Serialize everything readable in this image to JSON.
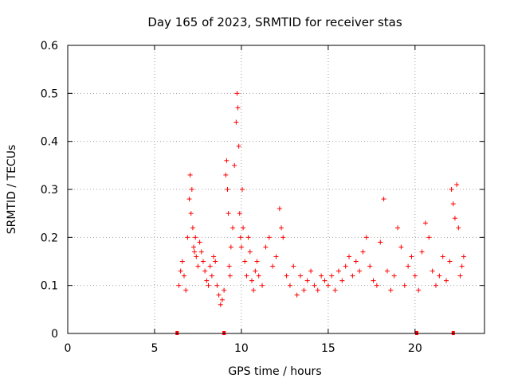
{
  "chart_data": {
    "type": "scatter",
    "title": "Day 165 of 2023, SRMTID for receiver stas",
    "xlabel": "GPS time / hours",
    "ylabel": "SRMTID / TECUs",
    "xlim": [
      0,
      24
    ],
    "ylim": [
      0,
      0.6
    ],
    "xticks": [
      0,
      5,
      10,
      15,
      20
    ],
    "xtick_labels": [
      "0",
      "5",
      "10",
      "15",
      "20"
    ],
    "yticks": [
      0,
      0.1,
      0.2,
      0.3,
      0.4,
      0.5,
      0.6
    ],
    "ytick_labels": [
      "0",
      "0.1",
      "0.2",
      "0.3",
      "0.4",
      "0.5",
      "0.6"
    ],
    "grid": true,
    "marker": "plus",
    "color": "#ff0000",
    "zero_markers_x": [
      6.3,
      9.0,
      20.1,
      22.2
    ],
    "series": [
      {
        "name": "SRMTID",
        "x": [
          6.4,
          6.5,
          6.6,
          6.7,
          6.8,
          6.9,
          7.0,
          7.05,
          7.1,
          7.15,
          7.2,
          7.25,
          7.3,
          7.35,
          7.4,
          7.5,
          7.6,
          7.7,
          7.8,
          7.9,
          8.0,
          8.1,
          8.2,
          8.3,
          8.4,
          8.5,
          8.6,
          8.7,
          8.8,
          8.9,
          9.0,
          9.1,
          9.15,
          9.2,
          9.25,
          9.3,
          9.35,
          9.4,
          9.5,
          9.6,
          9.7,
          9.75,
          9.8,
          9.85,
          9.9,
          9.95,
          10.0,
          10.05,
          10.1,
          10.2,
          10.3,
          10.4,
          10.5,
          10.6,
          10.7,
          10.8,
          10.9,
          11.0,
          11.2,
          11.4,
          11.6,
          11.8,
          12.0,
          12.2,
          12.3,
          12.4,
          12.6,
          12.8,
          13.0,
          13.2,
          13.4,
          13.6,
          13.8,
          14.0,
          14.2,
          14.4,
          14.6,
          14.8,
          15.0,
          15.2,
          15.4,
          15.6,
          15.8,
          16.0,
          16.2,
          16.4,
          16.6,
          16.8,
          17.0,
          17.2,
          17.4,
          17.6,
          17.8,
          18.0,
          18.2,
          18.4,
          18.6,
          18.8,
          19.0,
          19.2,
          19.4,
          19.6,
          19.8,
          20.0,
          20.2,
          20.4,
          20.6,
          20.8,
          21.0,
          21.2,
          21.4,
          21.6,
          21.8,
          22.0,
          22.1,
          22.2,
          22.3,
          22.4,
          22.5,
          22.6,
          22.7,
          22.8
        ],
        "y": [
          0.1,
          0.13,
          0.15,
          0.12,
          0.09,
          0.2,
          0.28,
          0.33,
          0.25,
          0.3,
          0.22,
          0.18,
          0.17,
          0.2,
          0.16,
          0.14,
          0.19,
          0.17,
          0.15,
          0.13,
          0.11,
          0.1,
          0.14,
          0.12,
          0.16,
          0.15,
          0.1,
          0.08,
          0.06,
          0.07,
          0.09,
          0.33,
          0.36,
          0.3,
          0.25,
          0.14,
          0.12,
          0.18,
          0.22,
          0.35,
          0.44,
          0.5,
          0.47,
          0.39,
          0.25,
          0.2,
          0.18,
          0.3,
          0.22,
          0.15,
          0.12,
          0.2,
          0.17,
          0.11,
          0.09,
          0.13,
          0.15,
          0.12,
          0.1,
          0.18,
          0.2,
          0.14,
          0.16,
          0.26,
          0.22,
          0.2,
          0.12,
          0.1,
          0.14,
          0.08,
          0.12,
          0.09,
          0.11,
          0.13,
          0.1,
          0.09,
          0.12,
          0.11,
          0.1,
          0.12,
          0.09,
          0.13,
          0.11,
          0.14,
          0.16,
          0.12,
          0.15,
          0.13,
          0.17,
          0.2,
          0.14,
          0.11,
          0.1,
          0.19,
          0.28,
          0.13,
          0.09,
          0.12,
          0.22,
          0.18,
          0.1,
          0.14,
          0.16,
          0.12,
          0.09,
          0.17,
          0.23,
          0.2,
          0.13,
          0.1,
          0.12,
          0.16,
          0.11,
          0.15,
          0.3,
          0.27,
          0.24,
          0.31,
          0.22,
          0.12,
          0.14,
          0.16
        ]
      }
    ]
  }
}
